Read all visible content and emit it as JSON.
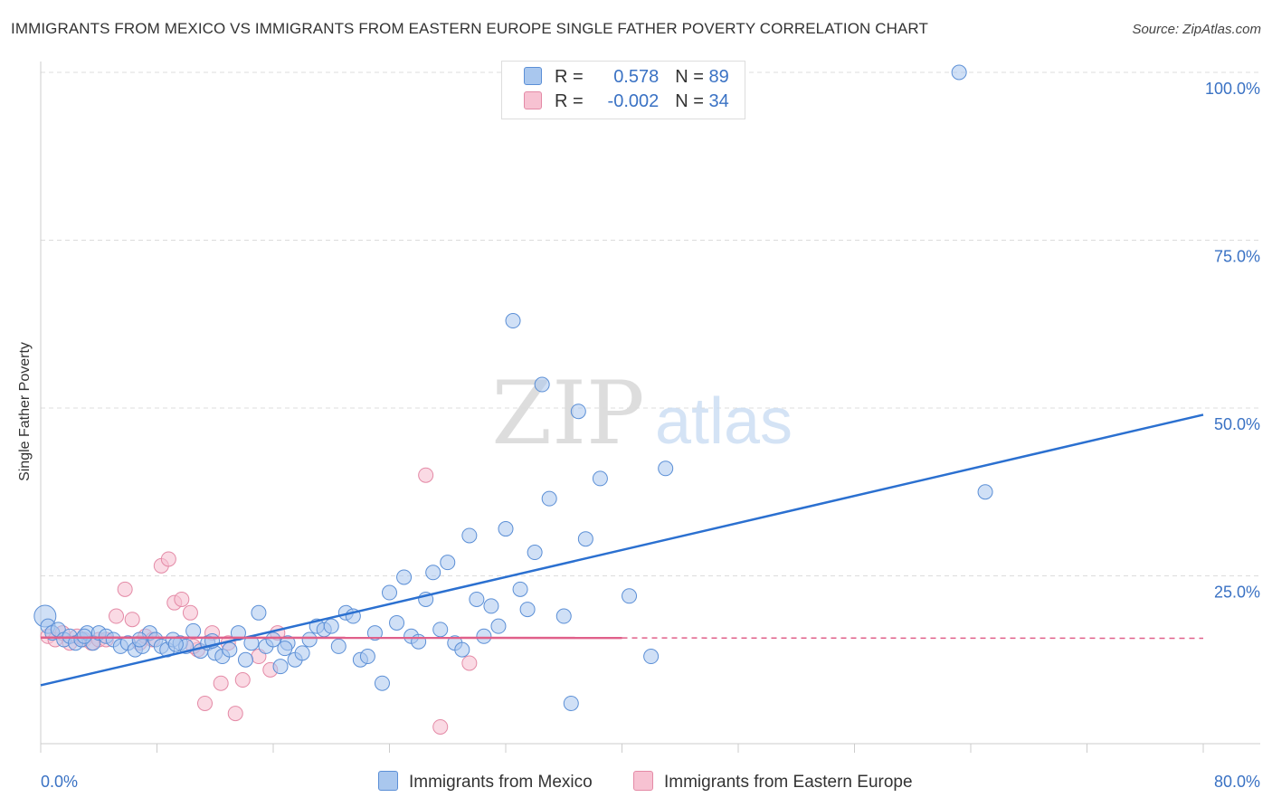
{
  "title": "IMMIGRANTS FROM MEXICO VS IMMIGRANTS FROM EASTERN EUROPE SINGLE FATHER POVERTY CORRELATION CHART",
  "source": "Source: ZipAtlas.com",
  "watermark": {
    "zip": "ZIP",
    "atlas": "atlas"
  },
  "legend": {
    "r_label": "R =",
    "n_label": "N =",
    "mexico": {
      "r": "0.578",
      "n": "89"
    },
    "eastern_europe": {
      "r": "-0.002",
      "n": "34"
    }
  },
  "bottom_legend": {
    "mexico": "Immigrants from Mexico",
    "eastern_europe": "Immigrants from Eastern Europe"
  },
  "colors": {
    "mexico_fill": "#a9c7ee",
    "mexico_stroke": "#5b8fd6",
    "mexico_line": "#2b70d0",
    "europe_fill": "#f7c2d2",
    "europe_stroke": "#e48aa6",
    "europe_line": "#e0608a",
    "axis_text": "#3a72c4",
    "grid": "#dcdcdc"
  },
  "chart_data": {
    "type": "scatter",
    "title": "IMMIGRANTS FROM MEXICO VS IMMIGRANTS FROM EASTERN EUROPE SINGLE FATHER POVERTY CORRELATION CHART",
    "xlabel": "",
    "ylabel": "Single Father Poverty",
    "xlim": [
      0,
      80
    ],
    "ylim": [
      0,
      100
    ],
    "x_tick_labels": [
      "0.0%",
      "80.0%"
    ],
    "y_ticks": [
      25,
      50,
      75,
      100
    ],
    "y_tick_labels": [
      "25.0%",
      "50.0%",
      "75.0%",
      "100.0%"
    ],
    "series": [
      {
        "name": "Immigrants from Mexico",
        "r": 0.578,
        "n": 89,
        "trend": {
          "x": [
            0,
            80
          ],
          "y": [
            8.7,
            49.0
          ]
        },
        "points": [
          [
            0.3,
            19.0
          ],
          [
            0.5,
            17.5
          ],
          [
            0.8,
            16.5
          ],
          [
            1.2,
            17.0
          ],
          [
            1.6,
            15.5
          ],
          [
            2.0,
            16.0
          ],
          [
            2.4,
            15.0
          ],
          [
            2.8,
            15.5
          ],
          [
            3.2,
            16.5
          ],
          [
            3.6,
            15.0
          ],
          [
            4.0,
            16.5
          ],
          [
            4.5,
            16.0
          ],
          [
            5.0,
            15.5
          ],
          [
            5.5,
            14.5
          ],
          [
            6.0,
            15.0
          ],
          [
            6.5,
            14.0
          ],
          [
            7.0,
            14.5
          ],
          [
            7.5,
            16.5
          ],
          [
            7.9,
            15.5
          ],
          [
            8.3,
            14.5
          ],
          [
            8.7,
            14.0
          ],
          [
            9.1,
            15.5
          ],
          [
            9.6,
            15.0
          ],
          [
            10.0,
            14.5
          ],
          [
            10.5,
            16.8
          ],
          [
            11.0,
            13.8
          ],
          [
            11.5,
            15.0
          ],
          [
            12.0,
            13.5
          ],
          [
            12.5,
            13.0
          ],
          [
            13.0,
            14.0
          ],
          [
            13.6,
            16.5
          ],
          [
            14.1,
            12.5
          ],
          [
            14.5,
            15.0
          ],
          [
            15.0,
            19.5
          ],
          [
            15.5,
            14.5
          ],
          [
            16.0,
            15.5
          ],
          [
            16.5,
            11.5
          ],
          [
            17.0,
            15.0
          ],
          [
            17.5,
            12.5
          ],
          [
            18.0,
            13.5
          ],
          [
            18.5,
            15.5
          ],
          [
            19.0,
            17.5
          ],
          [
            19.5,
            17.0
          ],
          [
            20.0,
            17.5
          ],
          [
            20.5,
            14.5
          ],
          [
            21.0,
            19.5
          ],
          [
            21.5,
            19.0
          ],
          [
            22.0,
            12.5
          ],
          [
            22.5,
            13.0
          ],
          [
            23.0,
            16.5
          ],
          [
            23.5,
            9.0
          ],
          [
            24.0,
            22.5
          ],
          [
            24.5,
            18.0
          ],
          [
            25.0,
            24.8
          ],
          [
            25.5,
            16.0
          ],
          [
            26.0,
            15.2
          ],
          [
            26.5,
            21.5
          ],
          [
            27.0,
            25.5
          ],
          [
            27.5,
            17.0
          ],
          [
            28.0,
            27.0
          ],
          [
            28.5,
            15.0
          ],
          [
            29.0,
            14.0
          ],
          [
            29.5,
            31.0
          ],
          [
            30.0,
            21.5
          ],
          [
            30.5,
            16.0
          ],
          [
            31.0,
            20.5
          ],
          [
            31.5,
            17.5
          ],
          [
            32.0,
            32.0
          ],
          [
            32.5,
            63.0
          ],
          [
            33.0,
            23.0
          ],
          [
            33.5,
            20.0
          ],
          [
            34.0,
            28.5
          ],
          [
            34.5,
            53.5
          ],
          [
            35.0,
            36.5
          ],
          [
            36.0,
            19.0
          ],
          [
            36.5,
            6.0
          ],
          [
            37.0,
            49.5
          ],
          [
            37.5,
            30.5
          ],
          [
            38.5,
            39.5
          ],
          [
            40.5,
            22.0
          ],
          [
            42.0,
            13.0
          ],
          [
            43.0,
            41.0
          ],
          [
            63.2,
            100.0
          ],
          [
            65.0,
            37.5
          ],
          [
            3.0,
            16.0
          ],
          [
            6.8,
            15.5
          ],
          [
            9.3,
            14.8
          ],
          [
            11.8,
            15.3
          ],
          [
            16.8,
            14.2
          ]
        ]
      },
      {
        "name": "Immigrants from Eastern Europe",
        "r": -0.002,
        "n": 34,
        "trend": {
          "x": [
            0,
            80
          ],
          "y": [
            15.8,
            15.7
          ],
          "solid_until": 40
        },
        "points": [
          [
            0.5,
            16.0
          ],
          [
            1.0,
            15.5
          ],
          [
            1.5,
            16.5
          ],
          [
            2.0,
            15.0
          ],
          [
            2.5,
            16.0
          ],
          [
            3.0,
            15.5
          ],
          [
            3.5,
            15.0
          ],
          [
            4.0,
            15.5
          ],
          [
            4.5,
            15.5
          ],
          [
            5.2,
            19.0
          ],
          [
            5.8,
            23.0
          ],
          [
            6.3,
            18.5
          ],
          [
            6.8,
            15.0
          ],
          [
            7.2,
            16.0
          ],
          [
            7.7,
            15.5
          ],
          [
            8.3,
            26.5
          ],
          [
            8.8,
            27.5
          ],
          [
            9.2,
            21.0
          ],
          [
            9.7,
            21.5
          ],
          [
            10.3,
            19.5
          ],
          [
            10.8,
            14.0
          ],
          [
            11.3,
            6.0
          ],
          [
            11.8,
            16.5
          ],
          [
            12.4,
            9.0
          ],
          [
            12.9,
            15.0
          ],
          [
            13.4,
            4.5
          ],
          [
            13.9,
            9.5
          ],
          [
            15.0,
            13.0
          ],
          [
            15.8,
            11.0
          ],
          [
            16.3,
            16.5
          ],
          [
            26.5,
            40.0
          ],
          [
            27.5,
            2.5
          ],
          [
            29.5,
            12.0
          ],
          [
            10.5,
            14.5
          ]
        ]
      }
    ]
  }
}
